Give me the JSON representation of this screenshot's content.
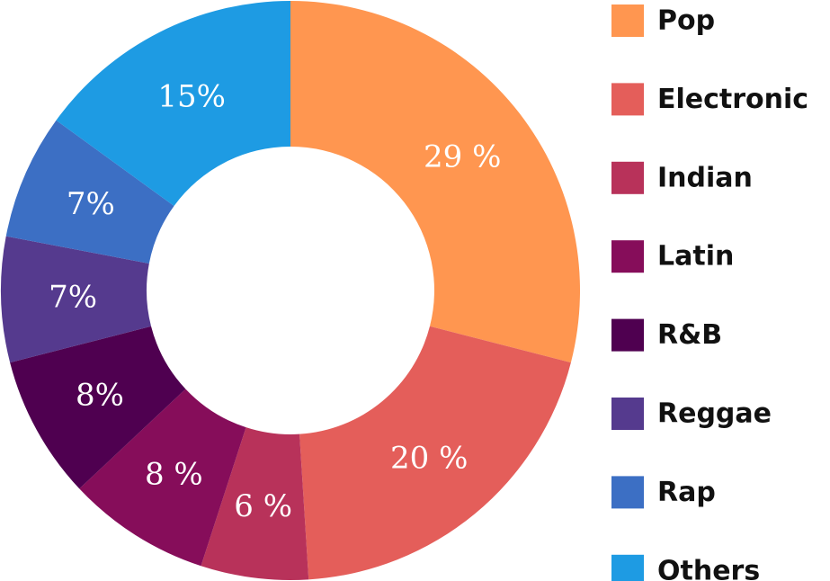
{
  "chart_data": {
    "type": "pie",
    "variant": "donut",
    "legend_position": "right",
    "slices": [
      {
        "name": "Pop",
        "value": 29,
        "label": "29 %",
        "color": "#FF9650"
      },
      {
        "name": "Electronic",
        "value": 20,
        "label": "20 %",
        "color": "#E45E5A"
      },
      {
        "name": "Indian",
        "value": 6,
        "label": "6 %",
        "color": "#B8325A"
      },
      {
        "name": "Latin",
        "value": 8,
        "label": "8 %",
        "color": "#860D5A"
      },
      {
        "name": "R&B",
        "value": 8,
        "label": "8%",
        "color": "#4F0050"
      },
      {
        "name": "Reggae",
        "value": 7,
        "label": "7%",
        "color": "#553A8E"
      },
      {
        "name": "Rap",
        "value": 7,
        "label": "7%",
        "color": "#3C6FC4"
      },
      {
        "name": "Others",
        "value": 15,
        "label": "15%",
        "color": "#1E9BE3"
      }
    ]
  }
}
